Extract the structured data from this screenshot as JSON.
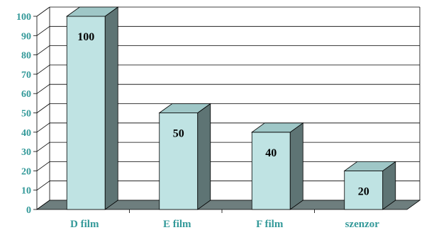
{
  "chart_data": {
    "type": "bar",
    "style": "3d",
    "categories": [
      "D film",
      "E film",
      "F film",
      "szenzor"
    ],
    "values": [
      100,
      50,
      40,
      20
    ],
    "data_labels": [
      "100",
      "50",
      "40",
      "20"
    ],
    "title": "",
    "xlabel": "",
    "ylabel": "",
    "ylim": [
      0,
      100
    ],
    "yticks": [
      0,
      10,
      20,
      30,
      40,
      50,
      60,
      70,
      80,
      90,
      100
    ],
    "grid": true,
    "legend": "none",
    "colors": {
      "bar_front": "#bfe3e3",
      "bar_top": "#9fc7c7",
      "bar_side": "#5e7474",
      "floor": "#6e7e7e",
      "axis_text": "#339999",
      "label_text": "#000000"
    }
  }
}
